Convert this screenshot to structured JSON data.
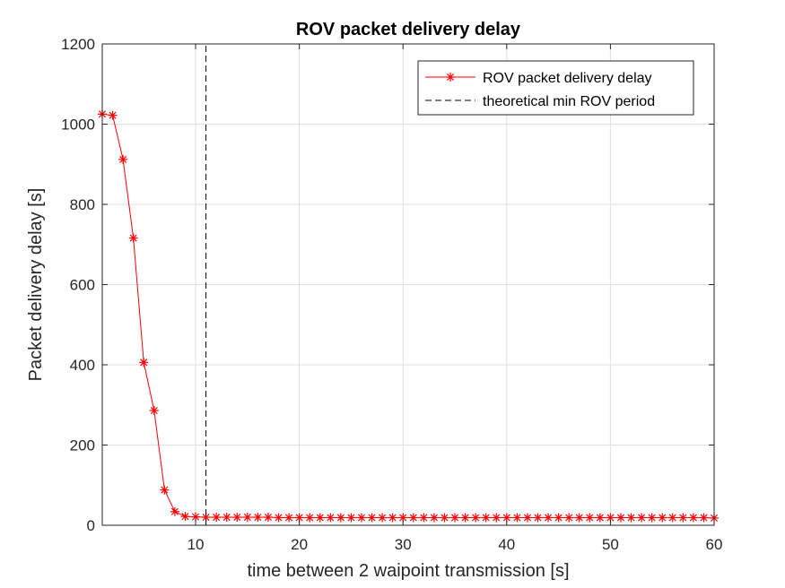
{
  "chart_data": {
    "type": "line",
    "title": "ROV packet delivery delay",
    "xlabel": "time between 2 waipoint transmission [s]",
    "ylabel": "Packet delivery delay [s]",
    "xlim": [
      1,
      60
    ],
    "ylim": [
      0,
      1200
    ],
    "xticks": [
      10,
      20,
      30,
      40,
      50,
      60
    ],
    "yticks": [
      0,
      200,
      400,
      600,
      800,
      1000,
      1200
    ],
    "grid": true,
    "legend_position": "top-right",
    "series": [
      {
        "name": "ROV packet delivery delay",
        "color": "#ff0000",
        "marker": "asterisk",
        "line_style": "solid",
        "x": [
          1,
          2,
          3,
          4,
          5,
          6,
          7,
          8,
          9,
          10,
          11,
          12,
          13,
          14,
          15,
          16,
          17,
          18,
          19,
          20,
          21,
          22,
          23,
          24,
          25,
          26,
          27,
          28,
          29,
          30,
          31,
          32,
          33,
          34,
          35,
          36,
          37,
          38,
          39,
          40,
          41,
          42,
          43,
          44,
          45,
          46,
          47,
          48,
          49,
          50,
          51,
          52,
          53,
          54,
          55,
          56,
          57,
          58,
          59,
          60
        ],
        "y": [
          1025,
          1022,
          912,
          716,
          406,
          286,
          88,
          34,
          22,
          21,
          20,
          20,
          20,
          20,
          20,
          20,
          20,
          19,
          19,
          19,
          19,
          19,
          19,
          19,
          19,
          19,
          19,
          19,
          19,
          19,
          19,
          19,
          19,
          19,
          19,
          19,
          19,
          19,
          19,
          19,
          19,
          19,
          19,
          19,
          19,
          19,
          19,
          19,
          19,
          19,
          19,
          19,
          19,
          19,
          19,
          19,
          19,
          19,
          19,
          18
        ]
      },
      {
        "name": "theoretical min ROV period",
        "color": "#000000",
        "line_style": "dashed",
        "x": [
          11,
          11
        ],
        "y": [
          0,
          1200
        ]
      }
    ]
  }
}
